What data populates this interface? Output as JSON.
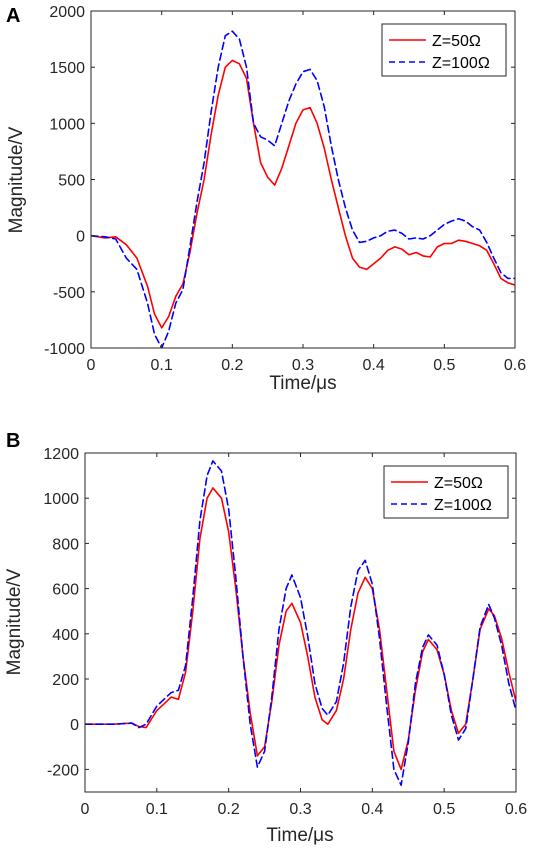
{
  "chart_data": [
    {
      "panel": "A",
      "type": "line",
      "xlabel": "Time/μs",
      "ylabel": "Magnitude/V",
      "xlim": [
        0,
        0.6
      ],
      "ylim": [
        -1000,
        2000
      ],
      "xticks": [
        0,
        0.1,
        0.2,
        0.3,
        0.4,
        0.5,
        0.6
      ],
      "xtick_labels": [
        "0",
        "0.1",
        "0.2",
        "0.3",
        "0.4",
        "0.5",
        "0.6"
      ],
      "yticks": [
        -1000,
        -500,
        0,
        500,
        1000,
        1500,
        2000
      ],
      "ytick_labels": [
        "-1000",
        "-500",
        "0",
        "500",
        "1000",
        "1500",
        "2000"
      ],
      "grid": false,
      "legend_position": "top-right",
      "series": [
        {
          "name": "Z=50Ω",
          "color": "#ff0000",
          "style": "solid",
          "x": [
            0,
            0.02,
            0.035,
            0.05,
            0.065,
            0.08,
            0.09,
            0.1,
            0.11,
            0.12,
            0.13,
            0.14,
            0.15,
            0.16,
            0.17,
            0.18,
            0.19,
            0.2,
            0.21,
            0.22,
            0.23,
            0.24,
            0.25,
            0.26,
            0.27,
            0.28,
            0.29,
            0.3,
            0.31,
            0.32,
            0.33,
            0.34,
            0.35,
            0.36,
            0.37,
            0.38,
            0.39,
            0.4,
            0.41,
            0.42,
            0.43,
            0.44,
            0.45,
            0.46,
            0.47,
            0.48,
            0.49,
            0.5,
            0.51,
            0.52,
            0.53,
            0.54,
            0.55,
            0.56,
            0.57,
            0.58,
            0.59,
            0.6
          ],
          "y": [
            0,
            -20,
            -10,
            -80,
            -200,
            -450,
            -700,
            -820,
            -720,
            -540,
            -430,
            -150,
            200,
            500,
            900,
            1250,
            1500,
            1560,
            1530,
            1400,
            1000,
            650,
            520,
            450,
            600,
            800,
            1000,
            1120,
            1140,
            1000,
            780,
            500,
            250,
            0,
            -200,
            -280,
            -300,
            -250,
            -200,
            -130,
            -100,
            -120,
            -170,
            -150,
            -180,
            -190,
            -100,
            -70,
            -70,
            -40,
            -50,
            -70,
            -90,
            -130,
            -250,
            -380,
            -420,
            -440
          ]
        },
        {
          "name": "Z=100Ω",
          "color": "#0000ff",
          "style": "dashed",
          "x": [
            0,
            0.02,
            0.035,
            0.05,
            0.065,
            0.08,
            0.09,
            0.1,
            0.11,
            0.12,
            0.13,
            0.14,
            0.15,
            0.16,
            0.17,
            0.18,
            0.19,
            0.2,
            0.21,
            0.22,
            0.23,
            0.24,
            0.25,
            0.26,
            0.27,
            0.28,
            0.29,
            0.3,
            0.31,
            0.32,
            0.33,
            0.34,
            0.35,
            0.36,
            0.37,
            0.38,
            0.39,
            0.4,
            0.41,
            0.42,
            0.43,
            0.44,
            0.45,
            0.46,
            0.47,
            0.48,
            0.49,
            0.5,
            0.51,
            0.52,
            0.53,
            0.54,
            0.55,
            0.56,
            0.57,
            0.58,
            0.59,
            0.6
          ],
          "y": [
            0,
            -10,
            -30,
            -200,
            -300,
            -600,
            -880,
            -1000,
            -850,
            -600,
            -480,
            -100,
            300,
            650,
            1100,
            1500,
            1780,
            1820,
            1750,
            1500,
            1000,
            880,
            850,
            800,
            1000,
            1200,
            1350,
            1460,
            1480,
            1380,
            1150,
            800,
            500,
            250,
            50,
            -60,
            -50,
            -20,
            0,
            40,
            50,
            20,
            -30,
            -20,
            -30,
            0,
            50,
            100,
            130,
            150,
            130,
            80,
            50,
            -60,
            -200,
            -330,
            -380,
            -380
          ]
        }
      ]
    },
    {
      "panel": "B",
      "type": "line",
      "xlabel": "Time/μs",
      "ylabel": "Magnitude/V",
      "xlim": [
        0,
        0.6
      ],
      "ylim": [
        -300,
        1200
      ],
      "xticks": [
        0,
        0.1,
        0.2,
        0.3,
        0.4,
        0.5,
        0.6
      ],
      "xtick_labels": [
        "0",
        "0.1",
        "0.2",
        "0.3",
        "0.4",
        "0.5",
        "0.6"
      ],
      "yticks": [
        -200,
        0,
        200,
        400,
        600,
        800,
        1000,
        1200
      ],
      "ytick_labels": [
        "-200",
        "0",
        "200",
        "400",
        "600",
        "800",
        "1000",
        "1200"
      ],
      "grid": false,
      "legend_position": "top-right",
      "series": [
        {
          "name": "Z=50Ω",
          "color": "#ff0000",
          "style": "solid",
          "x": [
            0,
            0.04,
            0.065,
            0.075,
            0.085,
            0.1,
            0.11,
            0.12,
            0.13,
            0.14,
            0.15,
            0.16,
            0.17,
            0.178,
            0.19,
            0.2,
            0.21,
            0.22,
            0.23,
            0.24,
            0.25,
            0.26,
            0.27,
            0.28,
            0.288,
            0.3,
            0.31,
            0.32,
            0.33,
            0.338,
            0.35,
            0.36,
            0.37,
            0.38,
            0.39,
            0.4,
            0.41,
            0.42,
            0.43,
            0.44,
            0.45,
            0.46,
            0.47,
            0.478,
            0.49,
            0.5,
            0.51,
            0.52,
            0.53,
            0.54,
            0.55,
            0.562,
            0.57,
            0.58,
            0.59,
            0.6
          ],
          "y": [
            0,
            0,
            5,
            -10,
            -15,
            60,
            90,
            120,
            110,
            230,
            500,
            820,
            1000,
            1045,
            1000,
            850,
            600,
            300,
            50,
            -140,
            -100,
            100,
            350,
            500,
            535,
            450,
            300,
            120,
            20,
            0,
            60,
            200,
            420,
            580,
            650,
            600,
            420,
            150,
            -120,
            -200,
            -70,
            150,
            320,
            375,
            330,
            220,
            60,
            -40,
            0,
            200,
            420,
            510,
            480,
            380,
            230,
            100
          ]
        },
        {
          "name": "Z=100Ω",
          "color": "#0000ff",
          "style": "dashed",
          "x": [
            0,
            0.04,
            0.065,
            0.075,
            0.085,
            0.1,
            0.11,
            0.12,
            0.13,
            0.14,
            0.15,
            0.16,
            0.17,
            0.178,
            0.19,
            0.2,
            0.21,
            0.22,
            0.23,
            0.24,
            0.25,
            0.26,
            0.27,
            0.28,
            0.288,
            0.3,
            0.31,
            0.32,
            0.33,
            0.338,
            0.35,
            0.36,
            0.37,
            0.38,
            0.39,
            0.4,
            0.41,
            0.42,
            0.43,
            0.44,
            0.45,
            0.46,
            0.47,
            0.478,
            0.49,
            0.5,
            0.51,
            0.52,
            0.53,
            0.54,
            0.55,
            0.562,
            0.57,
            0.58,
            0.59,
            0.6
          ],
          "y": [
            0,
            0,
            5,
            -15,
            0,
            80,
            110,
            140,
            150,
            260,
            560,
            900,
            1100,
            1165,
            1120,
            950,
            650,
            300,
            0,
            -190,
            -120,
            120,
            420,
            600,
            660,
            560,
            390,
            180,
            70,
            40,
            100,
            270,
            520,
            680,
            725,
            620,
            380,
            80,
            -200,
            -270,
            -80,
            180,
            340,
            395,
            350,
            220,
            40,
            -70,
            -20,
            200,
            430,
            530,
            470,
            350,
            180,
            60
          ]
        }
      ]
    }
  ]
}
